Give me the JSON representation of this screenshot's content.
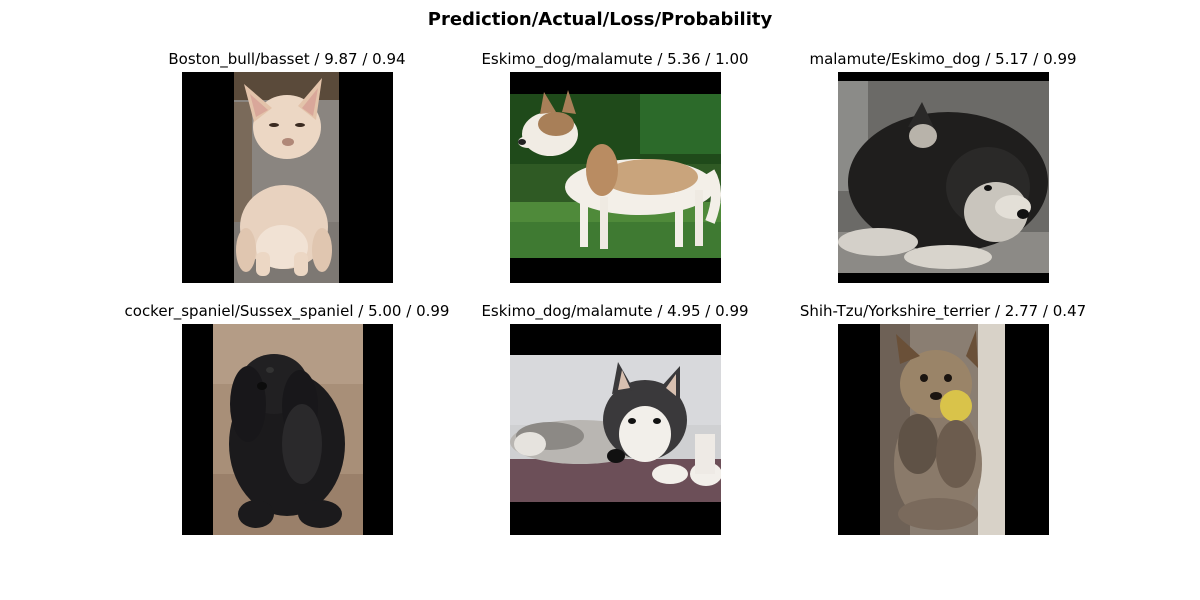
{
  "figure": {
    "title": "Prediction/Actual/Loss/Probability"
  },
  "panels": [
    {
      "title": "Boston_bull/basset / 9.87 / 0.94",
      "prediction": "Boston_bull",
      "actual": "basset",
      "loss": 9.87,
      "probability": 0.94
    },
    {
      "title": "Eskimo_dog/malamute / 5.36 / 1.00",
      "prediction": "Eskimo_dog",
      "actual": "malamute",
      "loss": 5.36,
      "probability": 1.0
    },
    {
      "title": "malamute/Eskimo_dog / 5.17 / 0.99",
      "prediction": "malamute",
      "actual": "Eskimo_dog",
      "loss": 5.17,
      "probability": 0.99
    },
    {
      "title": "cocker_spaniel/Sussex_spaniel / 5.00 / 0.99",
      "prediction": "cocker_spaniel",
      "actual": "Sussex_spaniel",
      "loss": 5.0,
      "probability": 0.99
    },
    {
      "title": "Eskimo_dog/malamute / 4.95 / 0.99",
      "prediction": "Eskimo_dog",
      "actual": "malamute",
      "loss": 4.95,
      "probability": 0.99
    },
    {
      "title": "Shih-Tzu/Yorkshire_terrier / 2.77 / 0.47",
      "prediction": "Shih-Tzu",
      "actual": "Yorkshire_terrier",
      "loss": 2.77,
      "probability": 0.47
    }
  ]
}
